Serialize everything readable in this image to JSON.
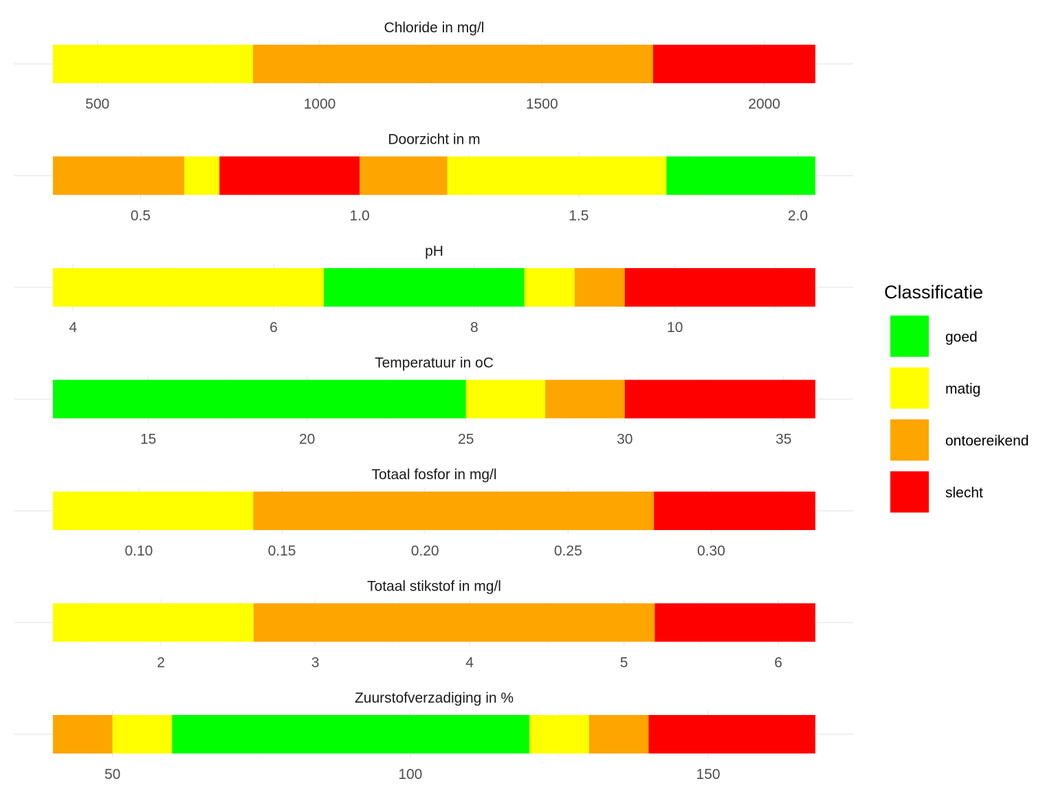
{
  "legend": {
    "title": "Classificatie",
    "items": [
      {
        "key": "goed",
        "label": "goed",
        "color": "#00FF00"
      },
      {
        "key": "matig",
        "label": "matig",
        "color": "#FFFF00"
      },
      {
        "key": "ontoereikend",
        "label": "ontoereikend",
        "color": "#FFA500"
      },
      {
        "key": "slecht",
        "label": "slecht",
        "color": "#FF0000"
      }
    ]
  },
  "chart_data": [
    {
      "type": "bar",
      "title": "Chloride in mg/l",
      "xlim": [
        400,
        2115
      ],
      "ticks": [
        500,
        1000,
        1500,
        2000
      ],
      "tick_labels": [
        "500",
        "1000",
        "1500",
        "2000"
      ],
      "segments": [
        {
          "from": 400,
          "to": 850,
          "class": "matig"
        },
        {
          "from": 850,
          "to": 1750,
          "class": "ontoereikend"
        },
        {
          "from": 1750,
          "to": 2115,
          "class": "slecht"
        }
      ]
    },
    {
      "type": "bar",
      "title": "Doorzicht in m",
      "xlim": [
        0.3,
        2.04
      ],
      "ticks": [
        0.5,
        1.0,
        1.5,
        2.0
      ],
      "tick_labels": [
        "0.5",
        "1.0",
        "1.5",
        "2.0"
      ],
      "segments": [
        {
          "from": 0.3,
          "to": 0.6,
          "class": "ontoereikend"
        },
        {
          "from": 0.6,
          "to": 0.68,
          "class": "matig"
        },
        {
          "from": 0.68,
          "to": 1.0,
          "class": "slecht"
        },
        {
          "from": 1.0,
          "to": 1.2,
          "class": "ontoereikend"
        },
        {
          "from": 1.2,
          "to": 1.7,
          "class": "matig"
        },
        {
          "from": 1.7,
          "to": 2.04,
          "class": "goed"
        }
      ]
    },
    {
      "type": "bar",
      "title": "pH",
      "xlim": [
        3.8,
        11.4
      ],
      "ticks": [
        4,
        6,
        8,
        10
      ],
      "tick_labels": [
        "4",
        "6",
        "8",
        "10"
      ],
      "segments": [
        {
          "from": 3.8,
          "to": 6.5,
          "class": "matig"
        },
        {
          "from": 6.5,
          "to": 8.5,
          "class": "goed"
        },
        {
          "from": 8.5,
          "to": 9.0,
          "class": "matig"
        },
        {
          "from": 9.0,
          "to": 9.5,
          "class": "ontoereikend"
        },
        {
          "from": 9.5,
          "to": 11.4,
          "class": "slecht"
        }
      ]
    },
    {
      "type": "bar",
      "title": "Temperatuur in oC",
      "xlim": [
        12,
        36
      ],
      "ticks": [
        15,
        20,
        25,
        30,
        35
      ],
      "tick_labels": [
        "15",
        "20",
        "25",
        "30",
        "35"
      ],
      "segments": [
        {
          "from": 12,
          "to": 25,
          "class": "goed"
        },
        {
          "from": 25,
          "to": 27.5,
          "class": "matig"
        },
        {
          "from": 27.5,
          "to": 30,
          "class": "ontoereikend"
        },
        {
          "from": 30,
          "to": 36,
          "class": "slecht"
        }
      ]
    },
    {
      "type": "bar",
      "title": "Totaal fosfor in mg/l",
      "xlim": [
        0.07,
        0.3364
      ],
      "ticks": [
        0.1,
        0.15,
        0.2,
        0.25,
        0.3
      ],
      "tick_labels": [
        "0.10",
        "0.15",
        "0.20",
        "0.25",
        "0.30"
      ],
      "segments": [
        {
          "from": 0.07,
          "to": 0.14,
          "class": "matig"
        },
        {
          "from": 0.14,
          "to": 0.28,
          "class": "ontoereikend"
        },
        {
          "from": 0.28,
          "to": 0.3364,
          "class": "slecht"
        }
      ]
    },
    {
      "type": "bar",
      "title": "Totaal stikstof in mg/l",
      "xlim": [
        1.3,
        6.24
      ],
      "ticks": [
        2,
        3,
        4,
        5,
        6
      ],
      "tick_labels": [
        "2",
        "3",
        "4",
        "5",
        "6"
      ],
      "segments": [
        {
          "from": 1.3,
          "to": 2.6,
          "class": "matig"
        },
        {
          "from": 2.6,
          "to": 5.2,
          "class": "ontoereikend"
        },
        {
          "from": 5.2,
          "to": 6.24,
          "class": "slecht"
        }
      ]
    },
    {
      "type": "bar",
      "title": "Zuurstofverzadiging in %",
      "xlim": [
        40,
        168
      ],
      "ticks": [
        50,
        100,
        150
      ],
      "tick_labels": [
        "50",
        "100",
        "150"
      ],
      "segments": [
        {
          "from": 40,
          "to": 50,
          "class": "ontoereikend"
        },
        {
          "from": 50,
          "to": 60,
          "class": "matig"
        },
        {
          "from": 60,
          "to": 120,
          "class": "goed"
        },
        {
          "from": 120,
          "to": 130,
          "class": "matig"
        },
        {
          "from": 130,
          "to": 140,
          "class": "ontoereikend"
        },
        {
          "from": 140,
          "to": 168,
          "class": "slecht"
        }
      ]
    }
  ]
}
